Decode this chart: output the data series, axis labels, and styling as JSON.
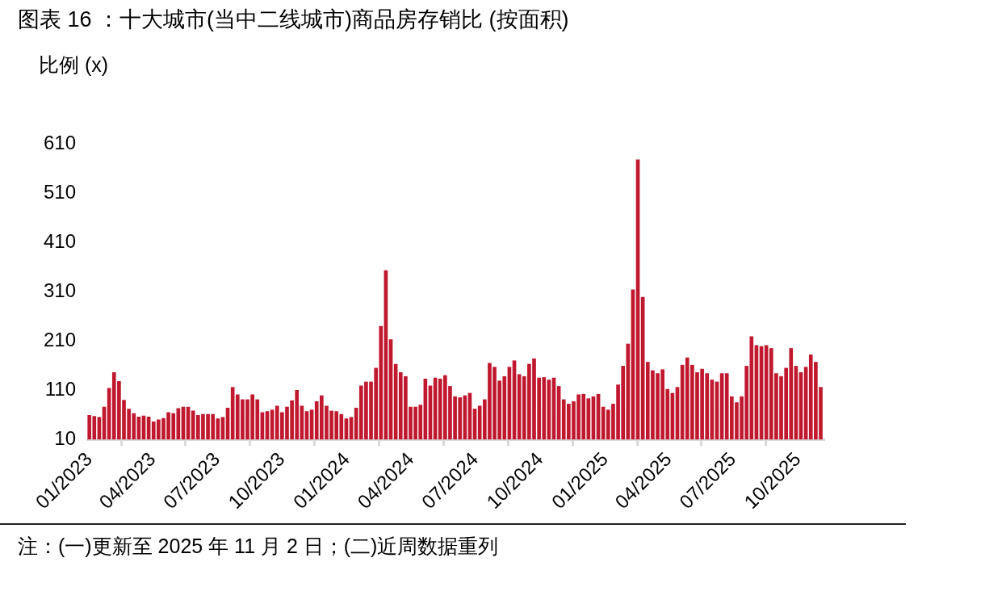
{
  "chart_data": {
    "type": "bar",
    "title": "图表 16 ：十大城市(当中二线城市)商品房存销比 (按面积)",
    "ylabel": "比例 (x)",
    "annotations": [
      "注：(一)更新至 2025 年 11 月 2 日；(二)近周数据重列"
    ],
    "x": [
      "2023-01-01",
      "2023-01-08",
      "2023-01-15",
      "2023-01-22",
      "2023-01-29",
      "2023-02-05",
      "2023-02-12",
      "2023-02-19",
      "2023-02-26",
      "2023-03-05",
      "2023-03-12",
      "2023-03-19",
      "2023-03-26",
      "2023-04-02",
      "2023-04-09",
      "2023-04-16",
      "2023-04-23",
      "2023-04-30",
      "2023-05-07",
      "2023-05-14",
      "2023-05-21",
      "2023-05-28",
      "2023-06-04",
      "2023-06-11",
      "2023-06-18",
      "2023-06-25",
      "2023-07-02",
      "2023-07-09",
      "2023-07-16",
      "2023-07-23",
      "2023-07-30",
      "2023-08-06",
      "2023-08-13",
      "2023-08-20",
      "2023-08-27",
      "2023-09-03",
      "2023-09-10",
      "2023-09-17",
      "2023-09-24",
      "2023-10-01",
      "2023-10-08",
      "2023-10-15",
      "2023-10-22",
      "2023-10-29",
      "2023-11-05",
      "2023-11-12",
      "2023-11-19",
      "2023-11-26",
      "2023-12-03",
      "2023-12-10",
      "2023-12-17",
      "2023-12-24",
      "2023-12-31",
      "2024-01-07",
      "2024-01-14",
      "2024-01-21",
      "2024-01-28",
      "2024-02-04",
      "2024-02-11",
      "2024-02-18",
      "2024-02-25",
      "2024-03-03",
      "2024-03-10",
      "2024-03-17",
      "2024-03-24",
      "2024-03-31",
      "2024-04-07",
      "2024-04-14",
      "2024-04-21",
      "2024-04-28",
      "2024-05-05",
      "2024-05-12",
      "2024-05-19",
      "2024-05-26",
      "2024-06-02",
      "2024-06-09",
      "2024-06-16",
      "2024-06-23",
      "2024-06-30",
      "2024-07-07",
      "2024-07-14",
      "2024-07-21",
      "2024-07-28",
      "2024-08-04",
      "2024-08-11",
      "2024-08-18",
      "2024-08-25",
      "2024-09-01",
      "2024-09-08",
      "2024-09-15",
      "2024-09-22",
      "2024-09-29",
      "2024-10-06",
      "2024-10-13",
      "2024-10-20",
      "2024-10-27",
      "2024-11-03",
      "2024-11-10",
      "2024-11-17",
      "2024-11-24",
      "2024-12-01",
      "2024-12-08",
      "2024-12-15",
      "2024-12-22",
      "2024-12-29",
      "2025-01-05",
      "2025-01-12",
      "2025-01-19",
      "2025-01-26",
      "2025-02-02",
      "2025-02-09",
      "2025-02-16",
      "2025-02-23",
      "2025-03-02",
      "2025-03-09",
      "2025-03-16",
      "2025-03-23",
      "2025-03-30",
      "2025-04-06",
      "2025-04-13",
      "2025-04-20",
      "2025-04-27",
      "2025-05-04",
      "2025-05-11",
      "2025-05-18",
      "2025-05-25",
      "2025-06-01",
      "2025-06-08",
      "2025-06-15",
      "2025-06-22",
      "2025-06-29",
      "2025-07-06",
      "2025-07-13",
      "2025-07-20",
      "2025-07-27",
      "2025-08-03",
      "2025-08-10",
      "2025-08-17",
      "2025-08-24",
      "2025-08-31",
      "2025-09-07",
      "2025-09-14",
      "2025-09-21",
      "2025-09-28",
      "2025-10-05",
      "2025-10-12",
      "2025-10-19",
      "2025-10-26",
      "2025-11-02"
    ],
    "values": [
      59,
      57,
      55,
      76,
      114,
      146,
      128,
      90,
      72,
      63,
      56,
      58,
      56,
      46,
      50,
      53,
      65,
      63,
      73,
      76,
      76,
      68,
      59,
      61,
      61,
      61,
      52,
      55,
      74,
      116,
      101,
      91,
      91,
      101,
      91,
      65,
      67,
      70,
      78,
      65,
      76,
      89,
      110,
      78,
      67,
      70,
      87,
      99,
      78,
      68,
      67,
      61,
      52,
      55,
      74,
      119,
      127,
      127,
      155,
      240,
      353,
      213,
      163,
      146,
      138,
      76,
      76,
      80,
      133,
      119,
      135,
      133,
      140,
      118,
      97,
      95,
      99,
      104,
      72,
      78,
      91,
      165,
      157,
      129,
      138,
      157,
      170,
      142,
      138,
      163,
      174,
      135,
      136,
      131,
      135,
      118,
      91,
      82,
      87,
      101,
      102,
      93,
      97,
      102,
      76,
      70,
      82,
      121,
      159,
      204,
      314,
      578,
      299,
      167,
      150,
      144,
      152,
      112,
      104,
      116,
      161,
      176,
      161,
      146,
      153,
      144,
      131,
      127,
      144,
      144,
      97,
      85,
      97,
      159,
      219,
      201,
      199,
      201,
      195,
      144,
      138,
      155,
      195,
      159,
      146,
      157,
      182,
      167,
      116
    ],
    "color": "#c0182e",
    "xlim": [
      "2022-12-29",
      "2025-11-06"
    ],
    "xticks": [
      {
        "value": "2023-01",
        "label": "01/2023"
      },
      {
        "value": "2023-04",
        "label": "04/2023"
      },
      {
        "value": "2023-07",
        "label": "07/2023"
      },
      {
        "value": "2023-10",
        "label": "10/2023"
      },
      {
        "value": "2024-01",
        "label": "01/2024"
      },
      {
        "value": "2024-04",
        "label": "04/2024"
      },
      {
        "value": "2024-07",
        "label": "07/2024"
      },
      {
        "value": "2024-10",
        "label": "10/2024"
      },
      {
        "value": "2025-01",
        "label": "01/2025"
      },
      {
        "value": "2025-04",
        "label": "04/2025"
      },
      {
        "value": "2025-07",
        "label": "07/2025"
      },
      {
        "value": "2025-10",
        "label": "10/2025"
      }
    ],
    "ylim": [
      10,
      610
    ],
    "yticks": [
      10,
      110,
      210,
      310,
      410,
      510,
      610
    ],
    "grid": false,
    "legend": false
  }
}
